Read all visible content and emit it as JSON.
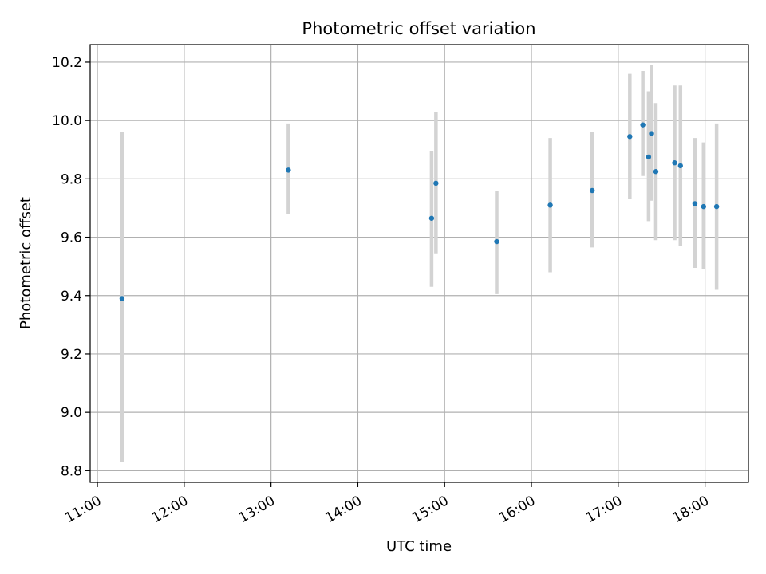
{
  "chart_data": {
    "type": "scatter",
    "title": "Photometric offset variation",
    "xlabel": "UTC time",
    "ylabel": "Photometric offset",
    "xlim": [
      "10:55",
      "18:30"
    ],
    "ylim": [
      8.76,
      10.26
    ],
    "xticks": [
      "11:00",
      "12:00",
      "13:00",
      "14:00",
      "15:00",
      "16:00",
      "17:00",
      "18:00"
    ],
    "yticks": [
      "8.8",
      "9.0",
      "9.2",
      "9.4",
      "9.6",
      "9.8",
      "10.0",
      "10.2"
    ],
    "grid": true,
    "colors": {
      "point": "#1f77b4",
      "errorbar": "#d3d3d3",
      "grid": "#b0b0b0"
    },
    "points": [
      {
        "x": "11:17",
        "y": 9.39,
        "ylow": 8.83,
        "yhigh": 9.96
      },
      {
        "x": "13:12",
        "y": 9.83,
        "ylow": 9.68,
        "yhigh": 9.99
      },
      {
        "x": "14:51",
        "y": 9.665,
        "ylow": 9.43,
        "yhigh": 9.895
      },
      {
        "x": "14:54",
        "y": 9.785,
        "ylow": 9.545,
        "yhigh": 10.03
      },
      {
        "x": "15:36",
        "y": 9.585,
        "ylow": 9.405,
        "yhigh": 9.76
      },
      {
        "x": "16:13",
        "y": 9.71,
        "ylow": 9.48,
        "yhigh": 9.94
      },
      {
        "x": "16:42",
        "y": 9.76,
        "ylow": 9.565,
        "yhigh": 9.96
      },
      {
        "x": "17:08",
        "y": 9.945,
        "ylow": 9.73,
        "yhigh": 10.16
      },
      {
        "x": "17:17",
        "y": 9.985,
        "ylow": 9.81,
        "yhigh": 10.17
      },
      {
        "x": "17:21",
        "y": 9.875,
        "ylow": 9.655,
        "yhigh": 10.1
      },
      {
        "x": "17:23",
        "y": 9.955,
        "ylow": 9.725,
        "yhigh": 10.19
      },
      {
        "x": "17:26",
        "y": 9.825,
        "ylow": 9.59,
        "yhigh": 10.06
      },
      {
        "x": "17:39",
        "y": 9.855,
        "ylow": 9.59,
        "yhigh": 10.12
      },
      {
        "x": "17:43",
        "y": 9.845,
        "ylow": 9.57,
        "yhigh": 10.12
      },
      {
        "x": "17:53",
        "y": 9.715,
        "ylow": 9.495,
        "yhigh": 9.94
      },
      {
        "x": "17:59",
        "y": 9.705,
        "ylow": 9.49,
        "yhigh": 9.925
      },
      {
        "x": "18:08",
        "y": 9.705,
        "ylow": 9.42,
        "yhigh": 9.99
      }
    ]
  }
}
